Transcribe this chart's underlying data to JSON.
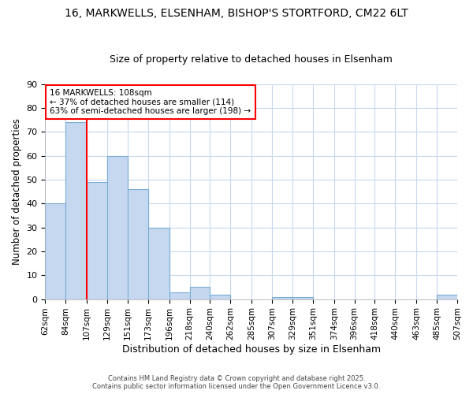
{
  "title_line1": "16, MARKWELLS, ELSENHAM, BISHOP'S STORTFORD, CM22 6LT",
  "title_line2": "Size of property relative to detached houses in Elsenham",
  "xlabel": "Distribution of detached houses by size in Elsenham",
  "ylabel": "Number of detached properties",
  "bin_labels": [
    "62sqm",
    "84sqm",
    "107sqm",
    "129sqm",
    "151sqm",
    "173sqm",
    "196sqm",
    "218sqm",
    "240sqm",
    "262sqm",
    "285sqm",
    "307sqm",
    "329sqm",
    "351sqm",
    "374sqm",
    "396sqm",
    "418sqm",
    "440sqm",
    "463sqm",
    "485sqm",
    "507sqm"
  ],
  "bin_edges": [
    62,
    84,
    107,
    129,
    151,
    173,
    196,
    218,
    240,
    262,
    285,
    307,
    329,
    351,
    374,
    396,
    418,
    440,
    463,
    485,
    507
  ],
  "bar_values": [
    40,
    74,
    49,
    60,
    46,
    30,
    3,
    5,
    2,
    0,
    0,
    1,
    1,
    0,
    0,
    0,
    0,
    0,
    0,
    2
  ],
  "bar_color": "#c5d8f0",
  "bar_edge_color": "#7aadd4",
  "vline_x": 107,
  "vline_color": "red",
  "annotation_text": "16 MARKWELLS: 108sqm\n← 37% of detached houses are smaller (114)\n63% of semi-detached houses are larger (198) →",
  "annotation_box_color": "white",
  "annotation_box_edge": "red",
  "footer_line1": "Contains HM Land Registry data © Crown copyright and database right 2025.",
  "footer_line2": "Contains public sector information licensed under the Open Government Licence v3.0.",
  "ylim": [
    0,
    90
  ],
  "yticks": [
    0,
    10,
    20,
    30,
    40,
    50,
    60,
    70,
    80,
    90
  ],
  "background_color": "#ffffff",
  "plot_bg_color": "#ffffff",
  "grid_color": "#c8d8f0",
  "title_fontsize": 10,
  "subtitle_fontsize": 9
}
